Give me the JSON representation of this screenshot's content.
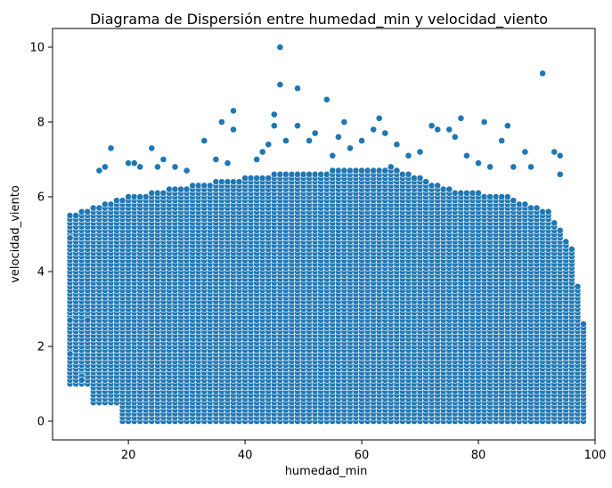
{
  "chart_data": {
    "type": "scatter",
    "title": "Diagrama de Dispersión entre humedad_min y velocidad_viento",
    "xlabel": "humedad_min",
    "ylabel": "velocidad_viento",
    "xlim": [
      7,
      100
    ],
    "ylim": [
      -0.5,
      10.5
    ],
    "xticks": [
      20,
      40,
      60,
      80,
      100
    ],
    "yticks": [
      0,
      2,
      4,
      6,
      8,
      10
    ],
    "grid": false,
    "marker_color": "#1f77b4",
    "marker_edge_color": "#ffffff",
    "dense_region": {
      "x_range": [
        10,
        98
      ],
      "y_max_by_x": [
        [
          10,
          5.5
        ],
        [
          14,
          5.7
        ],
        [
          20,
          6.0
        ],
        [
          27,
          6.2
        ],
        [
          35,
          6.4
        ],
        [
          45,
          6.6
        ],
        [
          55,
          6.7
        ],
        [
          65,
          6.8
        ],
        [
          75,
          6.2
        ],
        [
          85,
          6.0
        ],
        [
          92,
          5.6
        ],
        [
          96,
          4.6
        ],
        [
          98,
          2.6
        ]
      ],
      "y_step": 0.1
    },
    "outliers": [
      {
        "x": 10,
        "y": 4.9
      },
      {
        "x": 10,
        "y": 2.7
      },
      {
        "x": 10,
        "y": 1.8
      },
      {
        "x": 12,
        "y": 1.2
      },
      {
        "x": 12,
        "y": 1.1
      },
      {
        "x": 13,
        "y": 2.7
      },
      {
        "x": 15,
        "y": 6.7
      },
      {
        "x": 16,
        "y": 6.8
      },
      {
        "x": 17,
        "y": 7.3
      },
      {
        "x": 20,
        "y": 6.9
      },
      {
        "x": 21,
        "y": 6.9
      },
      {
        "x": 22,
        "y": 6.8
      },
      {
        "x": 24,
        "y": 7.3
      },
      {
        "x": 25,
        "y": 6.8
      },
      {
        "x": 26,
        "y": 7.0
      },
      {
        "x": 28,
        "y": 6.8
      },
      {
        "x": 30,
        "y": 6.7
      },
      {
        "x": 33,
        "y": 7.5
      },
      {
        "x": 35,
        "y": 7.0
      },
      {
        "x": 36,
        "y": 8.0
      },
      {
        "x": 37,
        "y": 6.9
      },
      {
        "x": 38,
        "y": 8.3
      },
      {
        "x": 38,
        "y": 7.8
      },
      {
        "x": 42,
        "y": 7.0
      },
      {
        "x": 43,
        "y": 7.2
      },
      {
        "x": 44,
        "y": 7.4
      },
      {
        "x": 45,
        "y": 7.9
      },
      {
        "x": 45,
        "y": 8.2
      },
      {
        "x": 46,
        "y": 10.0
      },
      {
        "x": 46,
        "y": 9.0
      },
      {
        "x": 47,
        "y": 7.5
      },
      {
        "x": 49,
        "y": 8.9
      },
      {
        "x": 49,
        "y": 7.9
      },
      {
        "x": 51,
        "y": 7.5
      },
      {
        "x": 52,
        "y": 7.7
      },
      {
        "x": 54,
        "y": 8.6
      },
      {
        "x": 55,
        "y": 7.1
      },
      {
        "x": 56,
        "y": 7.6
      },
      {
        "x": 57,
        "y": 8.0
      },
      {
        "x": 58,
        "y": 7.3
      },
      {
        "x": 60,
        "y": 7.5
      },
      {
        "x": 62,
        "y": 7.8
      },
      {
        "x": 63,
        "y": 8.1
      },
      {
        "x": 64,
        "y": 7.7
      },
      {
        "x": 66,
        "y": 7.4
      },
      {
        "x": 68,
        "y": 7.1
      },
      {
        "x": 70,
        "y": 7.2
      },
      {
        "x": 72,
        "y": 7.9
      },
      {
        "x": 73,
        "y": 7.8
      },
      {
        "x": 75,
        "y": 7.8
      },
      {
        "x": 76,
        "y": 7.6
      },
      {
        "x": 77,
        "y": 8.1
      },
      {
        "x": 78,
        "y": 7.1
      },
      {
        "x": 80,
        "y": 6.9
      },
      {
        "x": 81,
        "y": 8.0
      },
      {
        "x": 82,
        "y": 6.8
      },
      {
        "x": 84,
        "y": 7.5
      },
      {
        "x": 85,
        "y": 7.9
      },
      {
        "x": 86,
        "y": 6.8
      },
      {
        "x": 88,
        "y": 7.2
      },
      {
        "x": 89,
        "y": 6.8
      },
      {
        "x": 91,
        "y": 9.3
      },
      {
        "x": 93,
        "y": 7.2
      },
      {
        "x": 94,
        "y": 7.1
      },
      {
        "x": 94,
        "y": 6.6
      }
    ]
  }
}
